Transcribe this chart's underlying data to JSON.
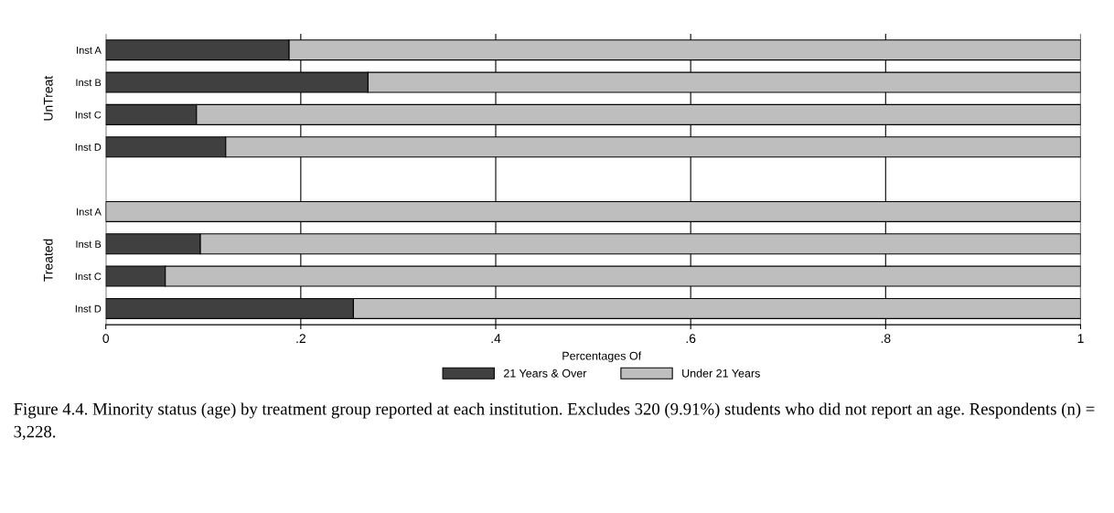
{
  "chart_data": {
    "type": "bar",
    "orientation": "horizontal",
    "stacked": true,
    "categories": [
      "Inst A",
      "Inst B",
      "Inst C",
      "Inst D",
      null,
      "Inst A",
      "Inst B",
      "Inst C",
      "Inst D"
    ],
    "series": [
      {
        "name": "21 Years & Over",
        "color": "#404040",
        "values": [
          0.188,
          0.269,
          0.093,
          0.123,
          null,
          0,
          0.097,
          0.061,
          0.254
        ]
      },
      {
        "name": "Under 21 Years",
        "color": "#bebebe",
        "values": [
          0.812,
          0.731,
          0.907,
          0.877,
          null,
          1,
          0.903,
          0.939,
          0.746
        ]
      }
    ],
    "xlim": [
      0,
      1
    ],
    "xticks": [
      0,
      {
        "value": 0.2,
        "label": ".2"
      },
      {
        "value": 0.4,
        "label": ".4"
      },
      {
        "value": 0.6,
        "label": ".6"
      },
      {
        "value": 0.8,
        "label": ".8"
      },
      1
    ],
    "grid": "x",
    "legend": "bottom",
    "legend_title": "Percentages Of",
    "annotations": [
      "UnTreat",
      "Treated",
      "Figure 4.4. Minority status (age) by treatment group reported at each institution. Excludes 320 (9.91%) students who did not report an age. Respondents (n) = 3,228."
    ]
  }
}
